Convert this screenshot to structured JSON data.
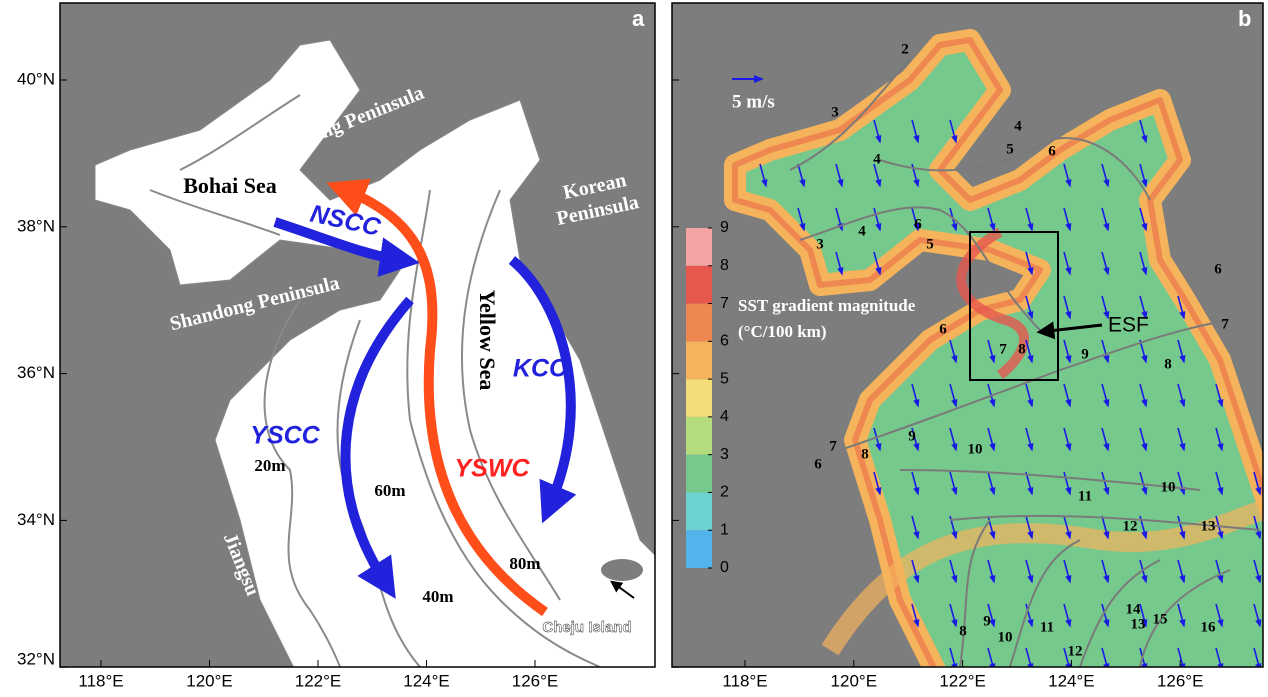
{
  "panel_a": {
    "letter": "a",
    "labels": [
      "Liaodong Peninsula",
      "Bohai Sea",
      "NSCC",
      "Korean",
      "Peninsula",
      "Shandong Peninsula",
      "Yellow Sea",
      "KCC",
      "YSCC",
      "20m",
      "60m",
      "YSWC",
      "80m",
      "40m",
      "Jiangsu",
      "Cheju Island"
    ]
  },
  "panel_b": {
    "letter": "b",
    "scale_label": "5 m/s",
    "colorbar_title": [
      "SST gradient magnitude",
      "(°C/100 km)"
    ],
    "colorbar_ticks": [
      0,
      1,
      2,
      3,
      4,
      5,
      6,
      7,
      8,
      9
    ],
    "colorbar_colors": [
      "#52b4ea",
      "#6dd2d2",
      "#76c98c",
      "#b5dc7c",
      "#f2dd78",
      "#f5b45c",
      "#ee8850",
      "#e6584e",
      "#f4a4a4"
    ],
    "front_label": "ESF",
    "contour_labels": [
      2,
      3,
      4,
      5,
      6,
      4,
      3,
      4,
      6,
      5,
      6,
      7,
      8,
      9,
      8,
      7,
      6,
      6,
      7,
      8,
      9,
      10,
      11,
      10,
      12,
      13,
      8,
      9,
      10,
      11,
      12,
      13,
      14,
      15,
      16
    ]
  },
  "axes": {
    "xticks": [
      {
        "value": 118,
        "label": "118°E"
      },
      {
        "value": 120,
        "label": "120°E"
      },
      {
        "value": 122,
        "label": "122°E"
      },
      {
        "value": 124,
        "label": "124°E"
      },
      {
        "value": 126,
        "label": "126°E"
      }
    ],
    "yticks": [
      {
        "value": 32,
        "label": "32°N"
      },
      {
        "value": 34,
        "label": "34°N"
      },
      {
        "value": 36,
        "label": "36°N"
      },
      {
        "value": 38,
        "label": "38°N"
      },
      {
        "value": 40,
        "label": "40°N"
      }
    ]
  }
}
